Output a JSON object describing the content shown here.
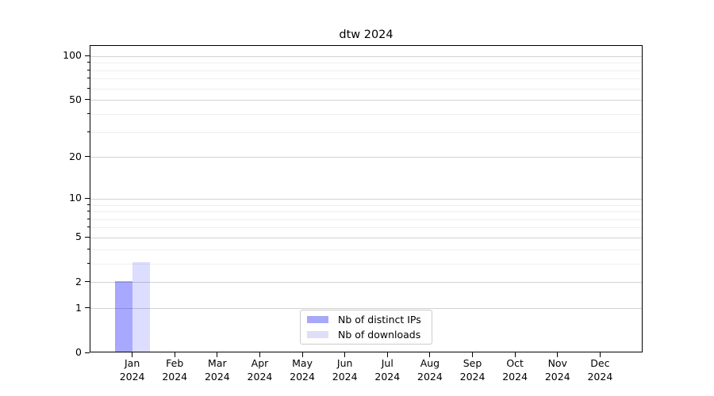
{
  "chart_data": {
    "type": "bar",
    "title": "dtw 2024",
    "categories": [
      "Jan",
      "Feb",
      "Mar",
      "Apr",
      "May",
      "Jun",
      "Jul",
      "Aug",
      "Sep",
      "Oct",
      "Nov",
      "Dec"
    ],
    "category_year": "2024",
    "series": [
      {
        "name": "Nb of distinct IPs",
        "color": "rgba(0,0,255,0.34)",
        "legend_color": "#a8a8f8",
        "values": [
          2,
          0,
          0,
          0,
          0,
          0,
          0,
          0,
          0,
          0,
          0,
          0
        ]
      },
      {
        "name": "Nb of downloads",
        "color": "rgba(0,0,255,0.135)",
        "legend_color": "#dedef8",
        "values": [
          3,
          0,
          0,
          0,
          0,
          0,
          0,
          0,
          0,
          0,
          0,
          0
        ]
      }
    ],
    "xlabel": "",
    "ylabel": "",
    "y_scale": "log1p",
    "ylim": [
      0,
      118
    ],
    "y_major_ticks": [
      0,
      1,
      2,
      5,
      10,
      20,
      50,
      100
    ],
    "y_minor_gridlines": [
      3,
      4,
      6,
      7,
      8,
      9,
      30,
      40,
      60,
      70,
      80,
      90
    ],
    "grid": "on",
    "legend_position": "bottom-center-inside"
  }
}
